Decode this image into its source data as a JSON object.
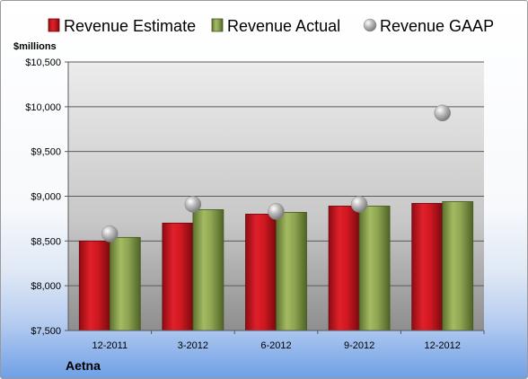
{
  "company": "Aetna",
  "chart_data": {
    "type": "bar",
    "unit_label": "$millions",
    "categories": [
      "12-2011",
      "3-2012",
      "6-2012",
      "9-2012",
      "12-2012"
    ],
    "series": [
      {
        "name": "Revenue Estimate",
        "type": "bar",
        "color": "#c8141e",
        "values": [
          8500,
          8700,
          8800,
          8890,
          8920
        ]
      },
      {
        "name": "Revenue Actual",
        "type": "bar",
        "color": "#8aa14a",
        "values": [
          8540,
          8850,
          8820,
          8890,
          8940
        ]
      },
      {
        "name": "Revenue GAAP",
        "type": "marker",
        "color": "#a8a8a8",
        "values": [
          8580,
          8910,
          8830,
          8910,
          9930
        ]
      }
    ],
    "ylim": [
      7500,
      10500
    ],
    "yticks": [
      7500,
      8000,
      8500,
      9000,
      9500,
      10000,
      10500
    ],
    "ytick_labels": [
      "$7,500",
      "$8,000",
      "$8,500",
      "$9,000",
      "$9,500",
      "$10,000",
      "$10,500"
    ],
    "grid": true,
    "legend_position": "top"
  }
}
